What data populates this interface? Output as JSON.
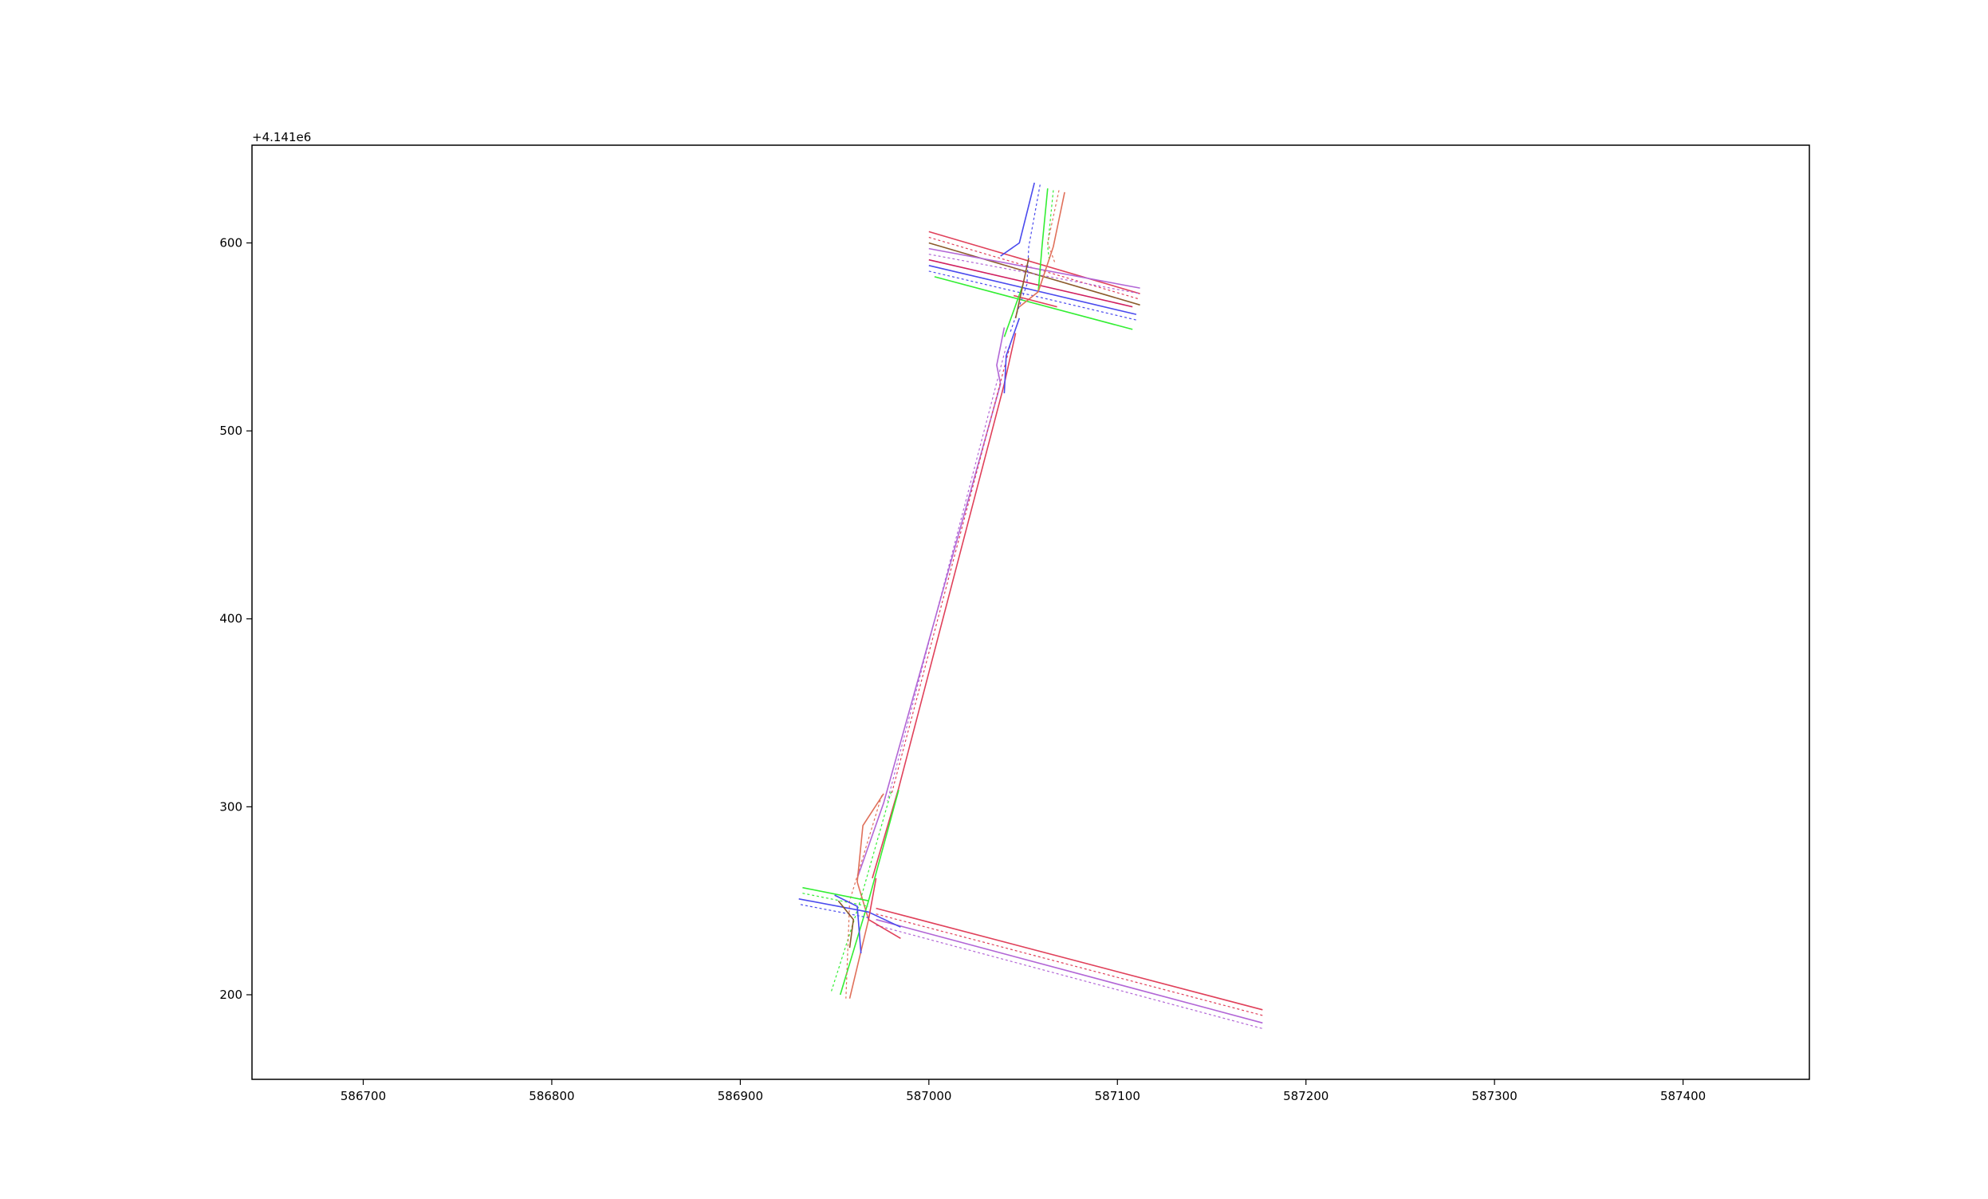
{
  "chart_data": {
    "type": "line",
    "title": "",
    "xlabel": "",
    "ylabel": "",
    "y_offset_label": "+4.141e6",
    "xlim": [
      586641,
      587467
    ],
    "ylim": [
      155,
      652
    ],
    "x_ticks": [
      586700,
      586800,
      586900,
      587000,
      587100,
      587200,
      587300,
      587400
    ],
    "y_ticks": [
      200,
      300,
      400,
      500,
      600
    ],
    "x_tick_labels": [
      "586700",
      "586800",
      "586900",
      "587000",
      "587100",
      "587200",
      "587300",
      "587400"
    ],
    "y_tick_labels": [
      "200",
      "300",
      "400",
      "500",
      "600"
    ],
    "grid": false,
    "legend": false,
    "series": [
      {
        "color": "#e0405a",
        "dashed": false,
        "points": [
          [
            587000,
            606
          ],
          [
            587112,
            573
          ]
        ]
      },
      {
        "color": "#e0405a",
        "dashed": true,
        "points": [
          [
            587000,
            603
          ],
          [
            587112,
            570
          ]
        ]
      },
      {
        "color": "#8b5a2b",
        "dashed": false,
        "points": [
          [
            587000,
            600
          ],
          [
            587112,
            567
          ]
        ]
      },
      {
        "color": "#b266d6",
        "dashed": false,
        "points": [
          [
            587000,
            597
          ],
          [
            587112,
            576
          ]
        ]
      },
      {
        "color": "#b266d6",
        "dashed": true,
        "points": [
          [
            587000,
            594
          ],
          [
            587112,
            573
          ]
        ]
      },
      {
        "color": "#d02060",
        "dashed": false,
        "points": [
          [
            587000,
            591
          ],
          [
            587108,
            566
          ]
        ]
      },
      {
        "color": "#4a4aee",
        "dashed": false,
        "points": [
          [
            587000,
            588
          ],
          [
            587110,
            562
          ]
        ]
      },
      {
        "color": "#4a4aee",
        "dashed": true,
        "points": [
          [
            587000,
            585
          ],
          [
            587110,
            559
          ]
        ]
      },
      {
        "color": "#33ee33",
        "dashed": false,
        "points": [
          [
            587003,
            582
          ],
          [
            587108,
            554
          ]
        ]
      },
      {
        "color": "#4a4aee",
        "dashed": false,
        "points": [
          [
            587056,
            632
          ],
          [
            587048,
            600
          ],
          [
            587038,
            593
          ]
        ]
      },
      {
        "color": "#4a4aee",
        "dashed": true,
        "points": [
          [
            587059,
            631
          ],
          [
            587053,
            598
          ],
          [
            587052,
            578
          ],
          [
            587043,
            552
          ]
        ]
      },
      {
        "color": "#33ee33",
        "dashed": false,
        "points": [
          [
            587063,
            629
          ],
          [
            587060,
            598
          ],
          [
            587058,
            574
          ]
        ]
      },
      {
        "color": "#33ee33",
        "dashed": true,
        "points": [
          [
            587066,
            628
          ],
          [
            587063,
            598
          ],
          [
            587064,
            590
          ]
        ]
      },
      {
        "color": "#e0705a",
        "dashed": false,
        "points": [
          [
            587072,
            627
          ],
          [
            587066,
            598
          ],
          [
            587058,
            574
          ],
          [
            587048,
            566
          ]
        ]
      },
      {
        "color": "#e0705a",
        "dashed": true,
        "points": [
          [
            587069,
            628
          ],
          [
            587063,
            600
          ],
          [
            587067,
            589
          ]
        ]
      },
      {
        "color": "#e0405a",
        "dashed": false,
        "points": [
          [
            587045,
            572
          ],
          [
            587068,
            566
          ]
        ]
      },
      {
        "color": "#33ee33",
        "dashed": false,
        "points": [
          [
            587050,
            578
          ],
          [
            587040,
            550
          ]
        ]
      },
      {
        "color": "#8b5a2b",
        "dashed": false,
        "points": [
          [
            587053,
            592
          ],
          [
            587046,
            560
          ]
        ]
      },
      {
        "color": "#b266d6",
        "dashed": false,
        "points": [
          [
            587040,
            555
          ],
          [
            587036,
            535
          ],
          [
            587038,
            525
          ],
          [
            586976,
            302
          ],
          [
            586962,
            262
          ]
        ]
      },
      {
        "color": "#e0405a",
        "dashed": false,
        "points": [
          [
            587046,
            552
          ],
          [
            587040,
            525
          ],
          [
            586984,
            310
          ],
          [
            586970,
            262
          ]
        ]
      },
      {
        "color": "#e0405a",
        "dashed": true,
        "points": [
          [
            587043,
            545
          ],
          [
            586980,
            306
          ]
        ]
      },
      {
        "color": "#b266d6",
        "dashed": true,
        "points": [
          [
            587041,
            545
          ],
          [
            586978,
            303
          ]
        ]
      },
      {
        "color": "#4a4aee",
        "dashed": false,
        "points": [
          [
            587048,
            560
          ],
          [
            587041,
            540
          ],
          [
            587040,
            520
          ]
        ]
      },
      {
        "color": "#e0705a",
        "dashed": false,
        "points": [
          [
            586976,
            307
          ],
          [
            586965,
            290
          ],
          [
            586962,
            260
          ],
          [
            586968,
            240
          ],
          [
            586958,
            198
          ]
        ]
      },
      {
        "color": "#33ee33",
        "dashed": false,
        "points": [
          [
            586984,
            309
          ],
          [
            586968,
            250
          ],
          [
            586953,
            200
          ]
        ]
      },
      {
        "color": "#33ee33",
        "dashed": true,
        "points": [
          [
            586980,
            308
          ],
          [
            586963,
            248
          ],
          [
            586948,
            201
          ]
        ]
      },
      {
        "color": "#e0705a",
        "dashed": true,
        "points": [
          [
            586975,
            306
          ],
          [
            586958,
            250
          ],
          [
            586956,
            198
          ]
        ]
      },
      {
        "color": "#e0405a",
        "dashed": false,
        "points": [
          [
            586972,
            246
          ],
          [
            587177,
            192
          ]
        ]
      },
      {
        "color": "#e0405a",
        "dashed": true,
        "points": [
          [
            586972,
            243
          ],
          [
            587177,
            189
          ]
        ]
      },
      {
        "color": "#b266d6",
        "dashed": false,
        "points": [
          [
            586972,
            240
          ],
          [
            587177,
            185
          ]
        ]
      },
      {
        "color": "#b266d6",
        "dashed": true,
        "points": [
          [
            586972,
            237
          ],
          [
            587177,
            182
          ]
        ]
      },
      {
        "color": "#33ee33",
        "dashed": false,
        "points": [
          [
            586933,
            257
          ],
          [
            586968,
            250
          ]
        ]
      },
      {
        "color": "#33ee33",
        "dashed": true,
        "points": [
          [
            586933,
            254
          ],
          [
            586968,
            247
          ]
        ]
      },
      {
        "color": "#4a4aee",
        "dashed": false,
        "points": [
          [
            586931,
            251
          ],
          [
            586968,
            244
          ],
          [
            586985,
            236
          ]
        ]
      },
      {
        "color": "#4a4aee",
        "dashed": true,
        "points": [
          [
            586932,
            248
          ],
          [
            586968,
            241
          ]
        ]
      },
      {
        "color": "#4a4aee",
        "dashed": false,
        "points": [
          [
            586950,
            253
          ],
          [
            586962,
            247
          ],
          [
            586964,
            222
          ]
        ]
      },
      {
        "color": "#8b5a2b",
        "dashed": false,
        "points": [
          [
            586952,
            250
          ],
          [
            586960,
            240
          ],
          [
            586958,
            225
          ]
        ]
      },
      {
        "color": "#e0405a",
        "dashed": false,
        "points": [
          [
            586972,
            262
          ],
          [
            586968,
            240
          ],
          [
            586985,
            230
          ]
        ]
      }
    ]
  }
}
